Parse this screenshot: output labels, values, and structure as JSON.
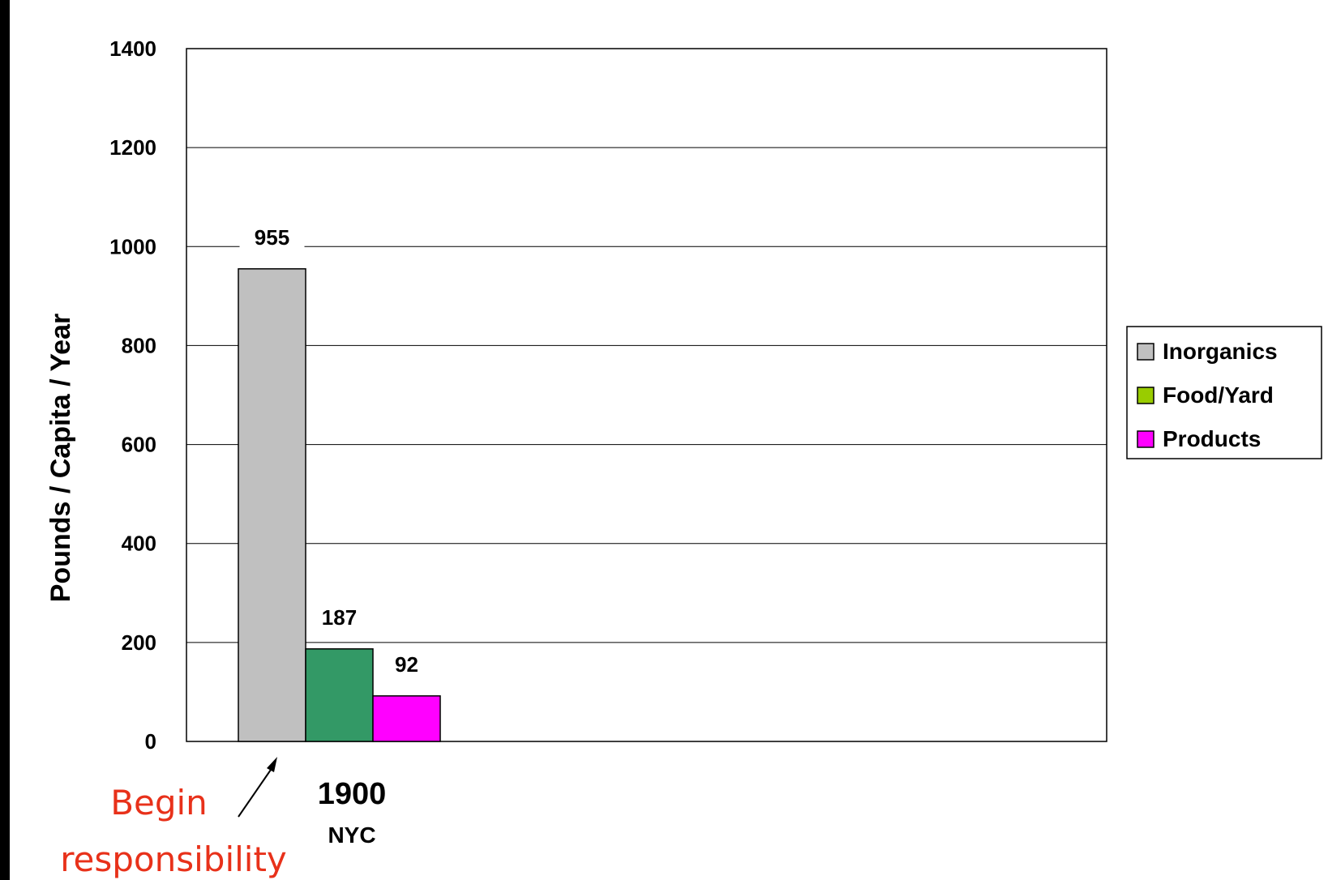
{
  "chart_data": {
    "type": "bar",
    "ylabel": "Pounds / Capita / Year",
    "ylim": [
      0,
      1400
    ],
    "yticks": [
      "0",
      "200",
      "400",
      "600",
      "800",
      "1000",
      "1200",
      "1400"
    ],
    "grid": true,
    "legend_position": "right",
    "categories": [
      "1900"
    ],
    "category_sublabels": [
      "NYC"
    ],
    "series": [
      {
        "name": "Inorganics",
        "values": [
          955
        ],
        "labels": [
          "955"
        ],
        "color": "#c0c0c0"
      },
      {
        "name": "Food/Yard",
        "values": [
          187
        ],
        "labels": [
          "187"
        ],
        "color": "#339966"
      },
      {
        "name": "Products",
        "values": [
          92
        ],
        "labels": [
          "92"
        ],
        "color": "#ff00ff"
      }
    ],
    "legend_swatch_colors": [
      "#c0c0c0",
      "#99cc00",
      "#ff00ff"
    ],
    "annotation": {
      "line1": "Begin",
      "line2": "responsibility",
      "color": "#e8311a"
    }
  }
}
